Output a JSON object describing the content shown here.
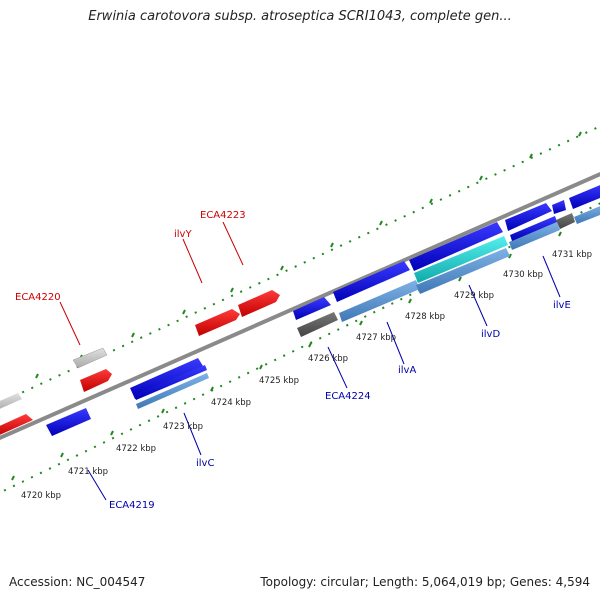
{
  "title": "Erwinia carotovora subsp. atroseptica SCRI1043, complete gen...",
  "footer": {
    "accession": "Accession: NC_004547",
    "summary": "Topology: circular; Length: 5,064,019 bp; Genes: 4,594"
  },
  "axis": {
    "unit": "kbp",
    "ticks": [
      "4720 kbp",
      "4721 kbp",
      "4722 kbp",
      "4723 kbp",
      "4724 kbp",
      "4725 kbp",
      "4726 kbp",
      "4727 kbp",
      "4728 kbp",
      "4729 kbp",
      "4730 kbp",
      "4731 kbp"
    ]
  },
  "gene_labels": {
    "eca4220": "ECA4220",
    "ilvy": "ilvY",
    "eca4223": "ECA4223",
    "eca4219": "ECA4219",
    "ilvc": "ilvC",
    "eca4224": "ECA4224",
    "ilva": "ilvA",
    "ilvd": "ilvD",
    "ilve": "ilvE"
  },
  "colors": {
    "forward_label": "#cc0000",
    "reverse_label": "#0000aa",
    "forward_gene": "#ff0000",
    "reverse_gene": "#0000ee",
    "rna_cds": "#4f8fcf",
    "highlight": "#22cccc",
    "backbone": "#888888",
    "tick_dots": "#228822"
  }
}
